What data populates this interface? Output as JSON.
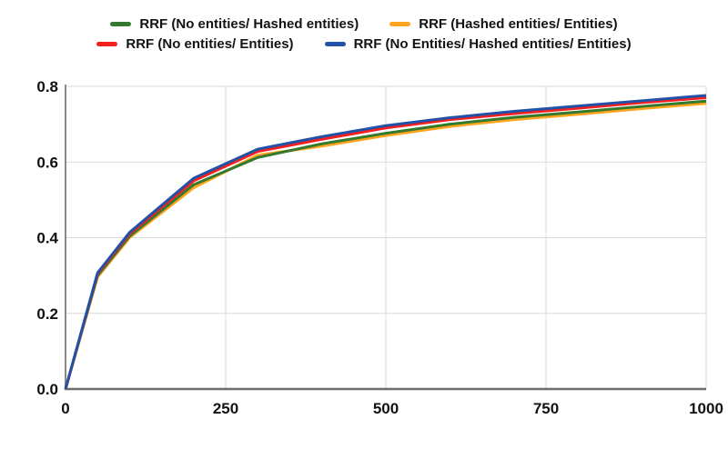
{
  "chart_data": {
    "type": "line",
    "x": [
      0,
      50,
      100,
      200,
      300,
      400,
      500,
      600,
      700,
      800,
      900,
      1000
    ],
    "series": [
      {
        "name": "RRF (No entities/ Hashed entities)",
        "color": "#337a2e",
        "values": [
          0,
          0.3,
          0.404,
          0.54,
          0.612,
          0.648,
          0.676,
          0.7,
          0.718,
          0.732,
          0.747,
          0.761
        ]
      },
      {
        "name": "RRF (Hashed entities/ Entities)",
        "color": "#ffa41e",
        "values": [
          0,
          0.296,
          0.4,
          0.532,
          0.618,
          0.642,
          0.67,
          0.694,
          0.712,
          0.726,
          0.741,
          0.755
        ]
      },
      {
        "name": "RRF (No entities/ Entities)",
        "color": "#f42020",
        "values": [
          0,
          0.304,
          0.41,
          0.55,
          0.628,
          0.66,
          0.69,
          0.712,
          0.728,
          0.742,
          0.757,
          0.77
        ]
      },
      {
        "name": "RRF (No Entities/ Hashed entities/ Entities)",
        "color": "#2351a5",
        "values": [
          0,
          0.307,
          0.414,
          0.557,
          0.634,
          0.667,
          0.696,
          0.717,
          0.734,
          0.748,
          0.762,
          0.776
        ]
      }
    ],
    "draw_order": [
      1,
      0,
      2,
      3
    ],
    "legend_rows": [
      [
        0,
        1
      ],
      [
        2,
        3
      ]
    ],
    "legend_position": "top",
    "title": "",
    "xlabel": "",
    "ylabel": "",
    "xlim": [
      0,
      1000
    ],
    "ylim": [
      0,
      0.8
    ],
    "x_tick_values": [
      0,
      250,
      500,
      750,
      1000
    ],
    "x_tick_labels": [
      "0",
      "250",
      "500",
      "750",
      "1000"
    ],
    "y_tick_values": [
      0,
      0.2,
      0.4,
      0.6,
      0.8
    ],
    "y_tick_labels": [
      "0.0",
      "0.2",
      "0.4",
      "0.6",
      "0.8"
    ],
    "grid": true
  },
  "colors": {
    "background": "#ffffff",
    "gridline": "#d9d9d9",
    "axis_left": "#8a8a8a",
    "axis_bottom": "#6e6e6e",
    "tick_text": "#111111"
  }
}
